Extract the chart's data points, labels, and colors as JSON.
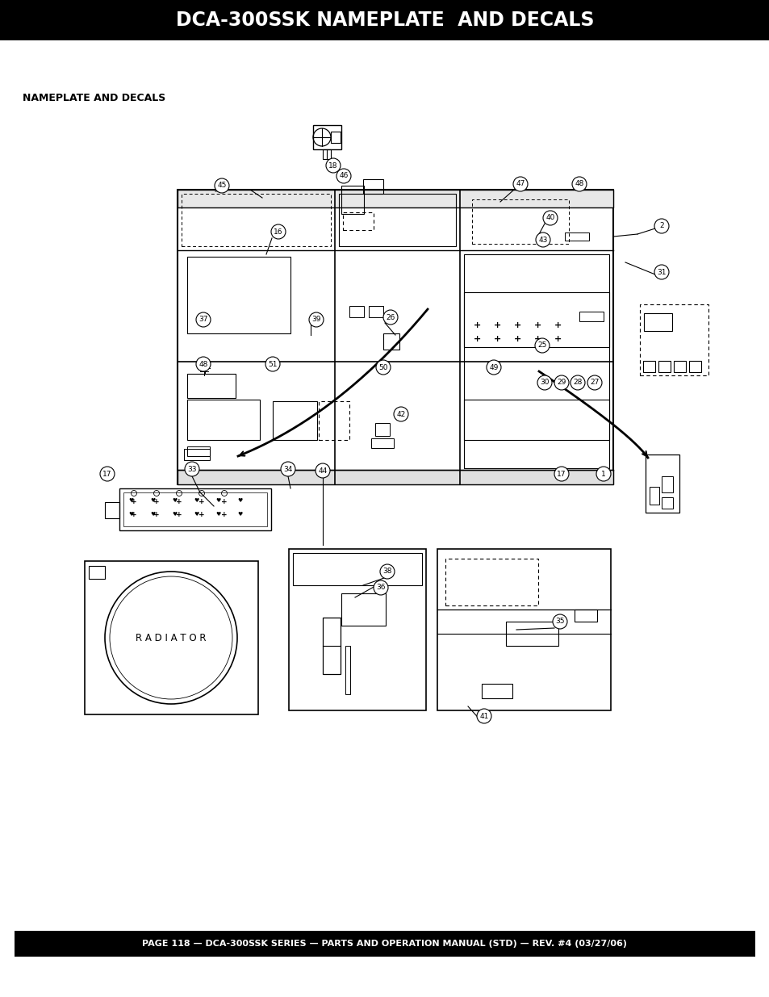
{
  "title": "DCA-300SSK NAMEPLATE  AND DECALS",
  "subtitle": "NAMEPLATE AND DECALS",
  "footer": "PAGE 118 — DCA-300SSK SERIES — PARTS AND OPERATION MANUAL (STD) — REV. #4 (03/27/06)",
  "fig_width": 9.54,
  "fig_height": 12.35,
  "bg_color": "#ffffff",
  "line_color": "#000000",
  "title_bg": "#000000",
  "title_color": "#ffffff",
  "footer_bg": "#000000",
  "footer_color": "#ffffff"
}
